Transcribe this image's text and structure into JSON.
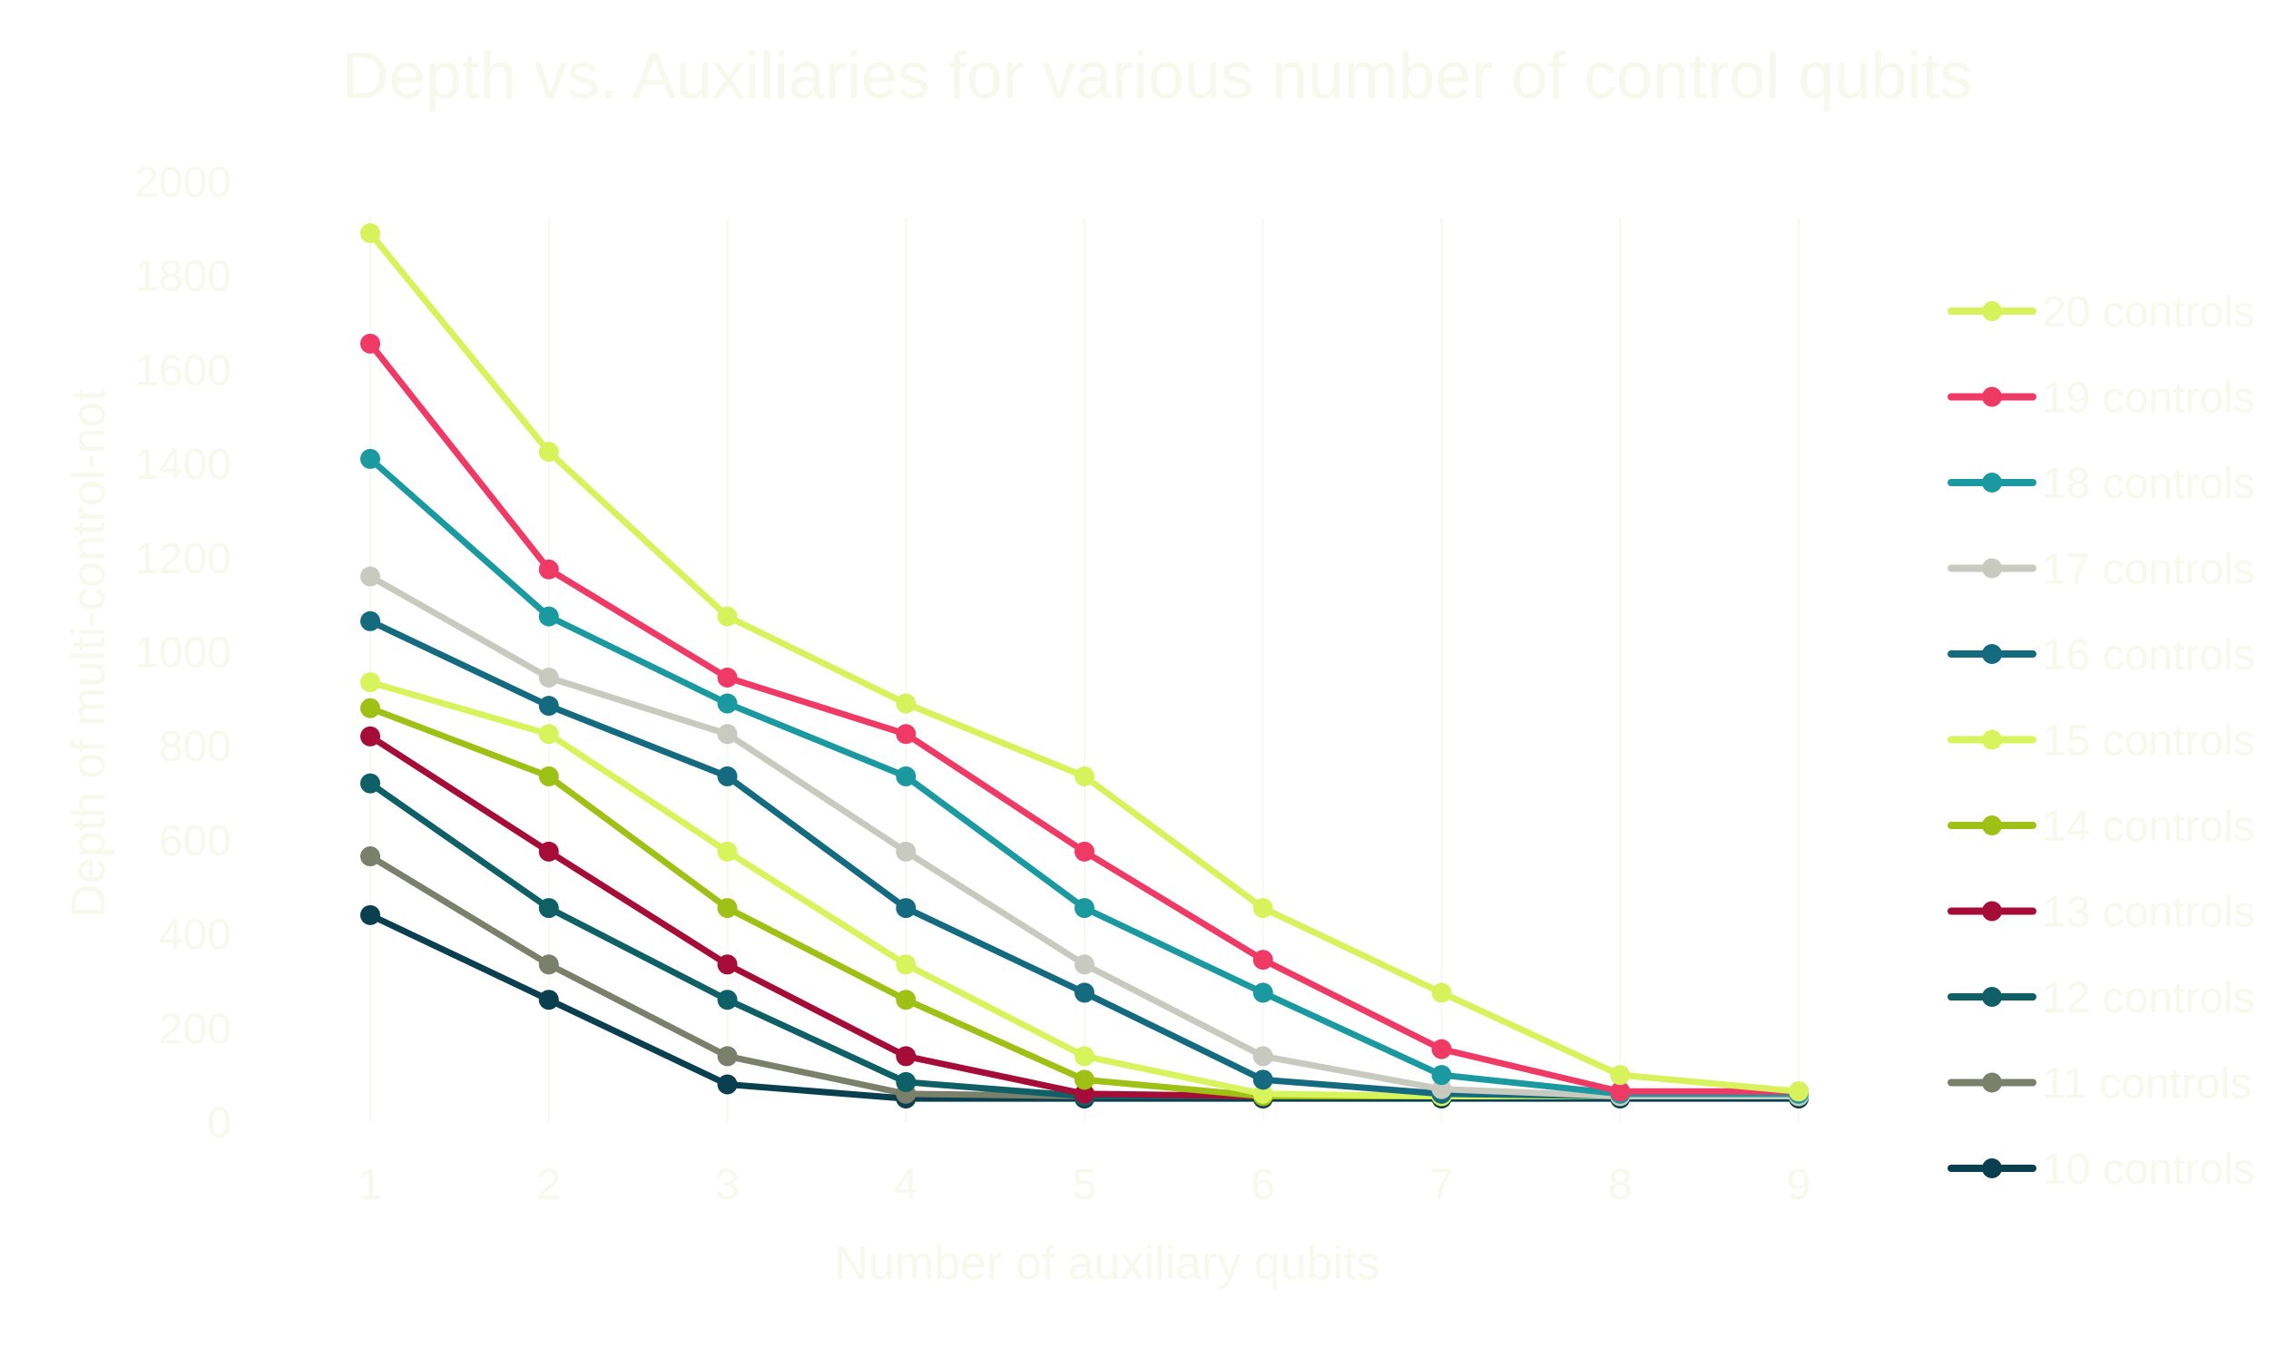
{
  "chart_data": {
    "type": "line",
    "title": "Depth vs. Auxiliaries for various number of control qubits",
    "xlabel": "Number of auxiliary qubits",
    "ylabel": "Depth of multi-control-not",
    "x": [
      1,
      2,
      3,
      4,
      5,
      6,
      7,
      8,
      9
    ],
    "xlim": [
      1,
      9
    ],
    "ylim": [
      0,
      2000
    ],
    "yticks": [
      0,
      200,
      400,
      600,
      800,
      1000,
      1200,
      1400,
      1600,
      1800,
      2000
    ],
    "grid": "vertical",
    "legend_position": "right",
    "text_color": "#f6f9ec",
    "series": [
      {
        "name": "20 controls",
        "color": "#d7f25a",
        "values": [
          1890,
          1425,
          1075,
          890,
          735,
          455,
          275,
          100,
          65
        ]
      },
      {
        "name": "19 controls",
        "color": "#ef3a66",
        "values": [
          1655,
          1175,
          945,
          825,
          575,
          345,
          155,
          65,
          65
        ]
      },
      {
        "name": "18 controls",
        "color": "#1a9aa0",
        "values": [
          1410,
          1075,
          890,
          735,
          455,
          275,
          100,
          60,
          60
        ]
      },
      {
        "name": "17 controls",
        "color": "#c9cabf",
        "values": [
          1160,
          945,
          825,
          575,
          335,
          140,
          70,
          55,
          55
        ]
      },
      {
        "name": "16 controls",
        "color": "#146b80",
        "values": [
          1065,
          885,
          735,
          455,
          275,
          90,
          60,
          55,
          55
        ]
      },
      {
        "name": "15 controls",
        "color": "#d8f45c",
        "values": [
          935,
          825,
          575,
          335,
          140,
          60,
          55,
          55,
          55
        ]
      },
      {
        "name": "14 controls",
        "color": "#9fc014",
        "values": [
          880,
          735,
          455,
          260,
          90,
          55,
          55,
          55,
          55
        ]
      },
      {
        "name": "13 controls",
        "color": "#a50d38",
        "values": [
          820,
          575,
          335,
          140,
          60,
          55,
          55,
          55,
          55
        ]
      },
      {
        "name": "12 controls",
        "color": "#0e5f66",
        "values": [
          720,
          455,
          260,
          85,
          55,
          55,
          55,
          55,
          55
        ]
      },
      {
        "name": "11 controls",
        "color": "#7b806b",
        "values": [
          565,
          335,
          140,
          60,
          55,
          55,
          55,
          55,
          55
        ]
      },
      {
        "name": "10 controls",
        "color": "#0a3f4f",
        "values": [
          440,
          260,
          80,
          50,
          50,
          50,
          50,
          50,
          50
        ]
      }
    ]
  }
}
